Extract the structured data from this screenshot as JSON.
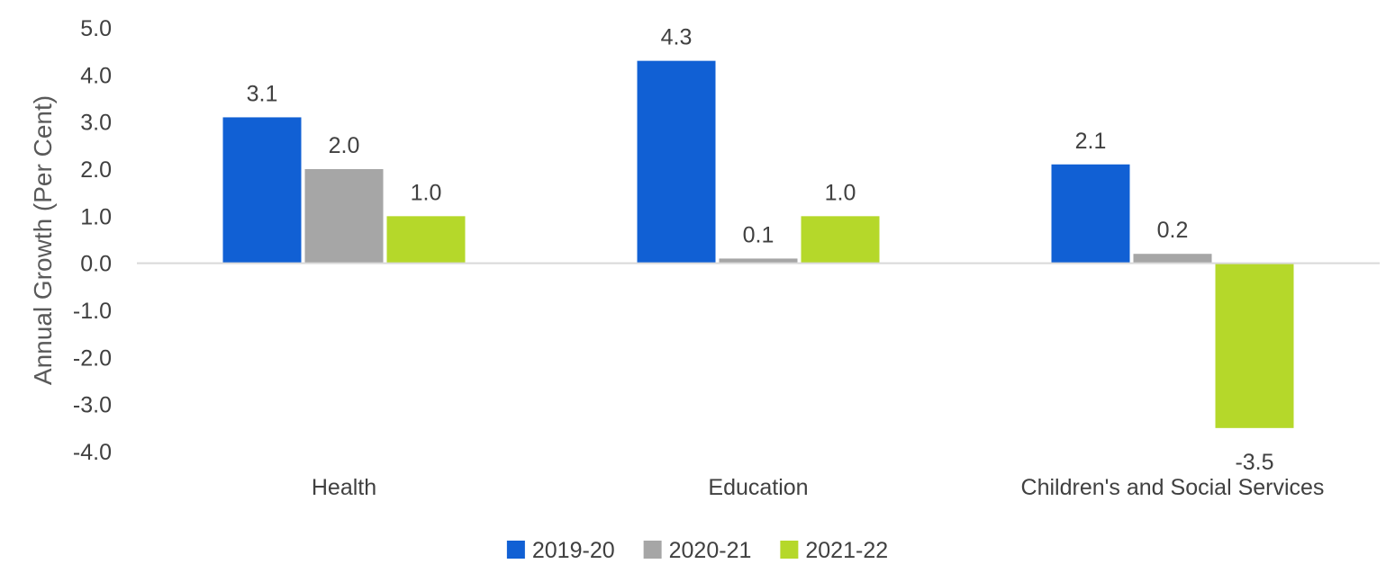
{
  "chart_data": {
    "type": "bar",
    "ylabel": "Annual Growth (Per Cent)",
    "xlabel": "",
    "categories": [
      "Health",
      "Education",
      "Children's and Social Services"
    ],
    "series": [
      {
        "name": "2019-20",
        "values": [
          3.1,
          4.3,
          2.1
        ],
        "color": "#1160D4"
      },
      {
        "name": "2020-21",
        "values": [
          2.0,
          0.1,
          0.2
        ],
        "color": "#A6A6A6"
      },
      {
        "name": "2021-22",
        "values": [
          1.0,
          1.0,
          -3.5
        ],
        "color": "#B5D82A"
      }
    ],
    "data_labels": [
      [
        "3.1",
        "4.3",
        "2.1"
      ],
      [
        "2.0",
        "0.1",
        "0.2"
      ],
      [
        "1.0",
        "1.0",
        "-3.5"
      ]
    ],
    "ylim": [
      -4.0,
      5.0
    ],
    "yticks": [
      "5.0",
      "4.0",
      "3.0",
      "2.0",
      "1.0",
      "0.0",
      "-1.0",
      "-2.0",
      "-3.0",
      "-4.0"
    ],
    "legend_position": "bottom",
    "grid": false
  }
}
